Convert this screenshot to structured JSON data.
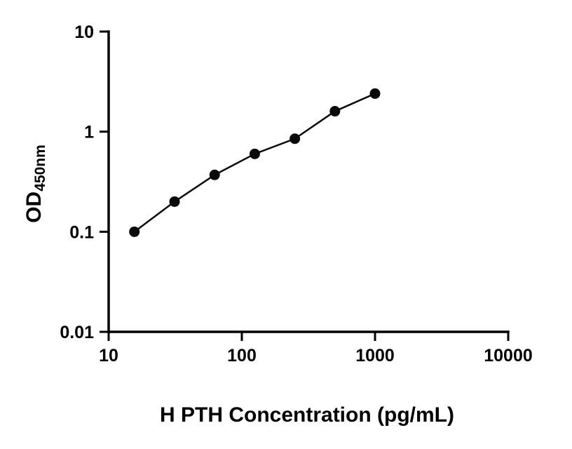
{
  "chart_data": {
    "type": "scatter",
    "x": [
      15.6,
      31.25,
      62.5,
      125,
      250,
      500,
      1000
    ],
    "y": [
      0.1,
      0.2,
      0.37,
      0.6,
      0.85,
      1.6,
      2.4
    ],
    "title": "",
    "xlabel": "H PTH Concentration (pg/mL)",
    "ylabel_main": "OD",
    "ylabel_sub": "450nm",
    "xscale": "log",
    "yscale": "log",
    "xlim": [
      10,
      10000
    ],
    "ylim": [
      0.01,
      10
    ],
    "x_ticks": [
      10,
      100,
      1000,
      10000
    ],
    "x_tick_labels": [
      "10",
      "100",
      "1000",
      "10000"
    ],
    "y_ticks": [
      0.01,
      0.1,
      1,
      10
    ],
    "y_tick_labels": [
      "0.01",
      "0.1",
      "1",
      "10"
    ],
    "grid": false,
    "legend": "none",
    "marker_color": "#0a0a0a",
    "line_color": "#0a0a0a",
    "axis_color": "#000000"
  }
}
